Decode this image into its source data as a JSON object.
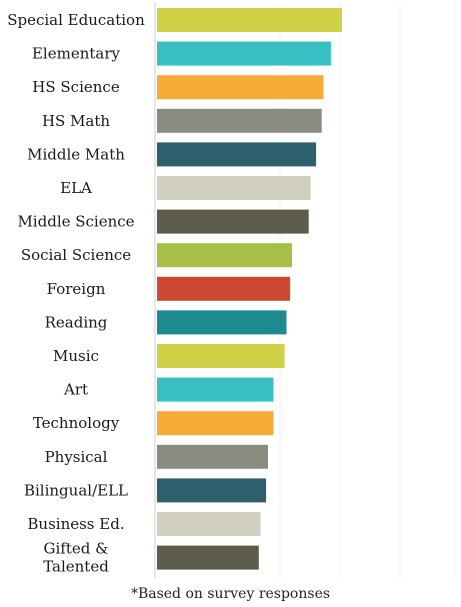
{
  "chart_data": {
    "type": "bar",
    "orientation": "horizontal",
    "categories": [
      "Special Education",
      "Elementary",
      "HS Science",
      "HS Math",
      "Middle Math",
      "ELA",
      "Middle Science",
      "Social Science",
      "Foreign",
      "Reading",
      "Music",
      "Art",
      "Technology",
      "Physical",
      "Bilingual/ELL",
      "Business Ed.",
      "Gifted &\nTalented"
    ],
    "values": [
      100,
      94,
      90,
      89,
      86,
      83,
      82,
      73,
      72,
      70,
      69,
      63,
      63,
      60,
      59,
      56,
      55
    ],
    "colors": [
      "#cfd146",
      "#37c0c4",
      "#f5ab35",
      "#8b8b80",
      "#2e5f6c",
      "#d1cfbf",
      "#5c5b4c",
      "#a8bf45",
      "#cc4a32",
      "#1d8a8f",
      "#cfd146",
      "#37c0c4",
      "#f5ab35",
      "#8b8b80",
      "#2e5f6c",
      "#d1cfbf",
      "#5c5b4c"
    ],
    "xlim": [
      0,
      100
    ],
    "grid": false,
    "legend": "none",
    "footnote": "*Based on survey responses"
  }
}
